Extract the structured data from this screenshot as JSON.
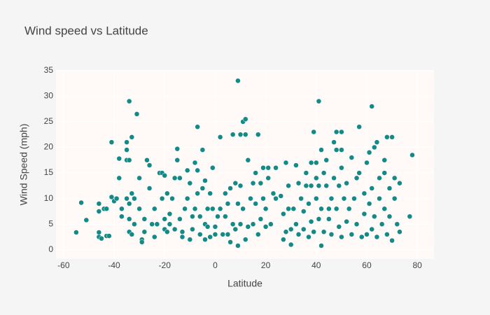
{
  "chart_data": {
    "type": "scatter",
    "title": "Wind speed vs Latitude",
    "x_label": "Latitude",
    "y_label": "Wind Speed (mph)",
    "color": "#138a86",
    "grid": true,
    "xlim": [
      -63,
      86.6
    ],
    "ylim": [
      -1.8,
      35.1
    ],
    "xticks": [
      -60,
      -40,
      -20,
      0,
      20,
      40,
      60,
      80
    ],
    "yticks": [
      0,
      5,
      10,
      15,
      20,
      25,
      30,
      35
    ],
    "x": [
      -55,
      -53,
      -51,
      -46,
      -46,
      -46,
      -46,
      -45,
      -44,
      -43,
      -43,
      -42,
      -41,
      -41,
      -40,
      -39,
      -38,
      -38,
      -37,
      -37,
      -35,
      -35,
      -35,
      -35,
      -34,
      -34,
      -34,
      -34,
      -34,
      -33,
      -33,
      -33,
      -32,
      -32,
      -31,
      -30,
      -30,
      -29,
      -29,
      -28,
      -28,
      -27,
      -26,
      -26,
      -25,
      -24,
      -24,
      -23,
      -22,
      -21,
      -21,
      -20,
      -20,
      -20,
      -19,
      -19,
      -18,
      -18,
      -17,
      -16,
      -16,
      -15,
      -15,
      -14,
      -14,
      -13,
      -13,
      -12,
      -11,
      -11,
      -10,
      -10,
      -9,
      -9,
      -8,
      -8,
      -7,
      -7,
      -7,
      -6,
      -6,
      -5,
      -5,
      -4,
      -4,
      -4,
      -3,
      -3,
      -2,
      -2,
      -1,
      -1,
      0,
      0,
      1,
      2,
      2,
      3,
      4,
      4,
      5,
      5,
      6,
      6,
      7,
      7,
      8,
      8,
      9,
      9,
      9,
      10,
      10,
      10,
      11,
      11,
      12,
      12,
      12,
      13,
      13,
      14,
      15,
      15,
      16,
      16,
      17,
      17,
      18,
      18,
      19,
      19,
      20,
      20,
      21,
      21,
      22,
      23,
      24,
      24,
      26,
      27,
      27,
      28,
      28,
      29,
      29,
      30,
      30,
      31,
      32,
      32,
      33,
      33,
      34,
      35,
      35,
      36,
      36,
      37,
      37,
      38,
      38,
      38,
      39,
      39,
      40,
      40,
      40,
      41,
      41,
      41,
      42,
      42,
      42,
      43,
      43,
      44,
      44,
      45,
      45,
      46,
      46,
      47,
      47,
      48,
      48,
      48,
      49,
      49,
      50,
      50,
      50,
      50,
      51,
      52,
      52,
      53,
      54,
      54,
      55,
      56,
      56,
      57,
      57,
      58,
      59,
      59,
      60,
      60,
      61,
      61,
      62,
      62,
      62,
      63,
      63,
      64,
      64,
      65,
      65,
      66,
      67,
      67,
      67,
      68,
      68,
      69,
      69,
      70,
      70,
      71,
      71,
      72,
      73,
      73,
      77,
      78
    ],
    "values": [
      3.4,
      9.2,
      5.8,
      3.4,
      2.5,
      9,
      7.5,
      2.2,
      8,
      8,
      2.7,
      2.7,
      10.3,
      21,
      9.5,
      10,
      17.8,
      14,
      8,
      6.5,
      19.5,
      21,
      17.5,
      10,
      9,
      29,
      17.5,
      6,
      3.5,
      3,
      11,
      22,
      10,
      5,
      26.5,
      8,
      14,
      2,
      1.5,
      6,
      3.5,
      17.5,
      16.5,
      12,
      5,
      8,
      2.5,
      5,
      15,
      10,
      15,
      14.5,
      4,
      6,
      3.5,
      11,
      7,
      5,
      10,
      14,
      4,
      17.5,
      19.7,
      6,
      14,
      3.5,
      2.5,
      8,
      10,
      15.5,
      13,
      2,
      4,
      6.5,
      8,
      17,
      15.5,
      24,
      11,
      3,
      6.5,
      12,
      19.5,
      5,
      13.5,
      2,
      4.5,
      8,
      11,
      2.5,
      16,
      8,
      4.5,
      3,
      6.5,
      22,
      8,
      3,
      11,
      6.5,
      3,
      9,
      12,
      1.5,
      5,
      22.5,
      4,
      13,
      33,
      9,
      0.8,
      22.5,
      5,
      12.5,
      25,
      8,
      25.5,
      22.5,
      2,
      17.5,
      4.5,
      10,
      5,
      13,
      9,
      15,
      22.5,
      3,
      6,
      13,
      16,
      10,
      4.5,
      8,
      14,
      16,
      5,
      11,
      10,
      16,
      10.5,
      7,
      2,
      17,
      3.5,
      12.5,
      8,
      4,
      1,
      8,
      16.5,
      5,
      13,
      3,
      10,
      7.5,
      4,
      15,
      12.5,
      2.5,
      9,
      17,
      5.5,
      12.5,
      23,
      3.5,
      10,
      14,
      17,
      6,
      29,
      12.5,
      0.8,
      19.5,
      8,
      15,
      3.5,
      12.5,
      17.5,
      6,
      8,
      10,
      3,
      21,
      14,
      19.5,
      8,
      23,
      12.5,
      4.5,
      16,
      23,
      19.5,
      2.5,
      10,
      13,
      5.5,
      8,
      18,
      3,
      10,
      14,
      5,
      24,
      15,
      2.5,
      7,
      11,
      17,
      3,
      19,
      9,
      28,
      12,
      4,
      20,
      6.5,
      21,
      2.5,
      10,
      14,
      5,
      17.5,
      15,
      8,
      3,
      22,
      12,
      6.5,
      22,
      1.8,
      10,
      14,
      5,
      13,
      3.5,
      6.5,
      18.5
    ]
  }
}
